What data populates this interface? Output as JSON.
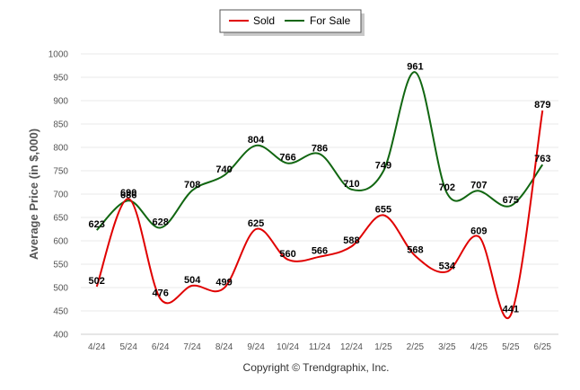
{
  "chart_data": {
    "type": "line",
    "categories": [
      "4/24",
      "5/24",
      "6/24",
      "7/24",
      "8/24",
      "9/24",
      "10/24",
      "11/24",
      "12/24",
      "1/25",
      "2/25",
      "3/25",
      "4/25",
      "5/25",
      "6/25"
    ],
    "series": [
      {
        "name": "Sold",
        "color": "#e00000",
        "values": [
          502,
          690,
          476,
          504,
          499,
          625,
          560,
          566,
          588,
          655,
          568,
          534,
          609,
          441,
          879
        ]
      },
      {
        "name": "For Sale",
        "color": "#116611",
        "values": [
          623,
          686,
          628,
          708,
          740,
          804,
          766,
          786,
          710,
          749,
          961,
          702,
          707,
          675,
          763
        ]
      }
    ],
    "ylabel": "Average Price (in $,000)",
    "ylim": [
      400,
      1000
    ],
    "yticks": [
      400,
      450,
      500,
      550,
      600,
      650,
      700,
      750,
      800,
      850,
      900,
      950,
      1000
    ],
    "grid": true,
    "legend_position": "top-center",
    "footer": "Copyright © Trendgraphix, Inc."
  }
}
